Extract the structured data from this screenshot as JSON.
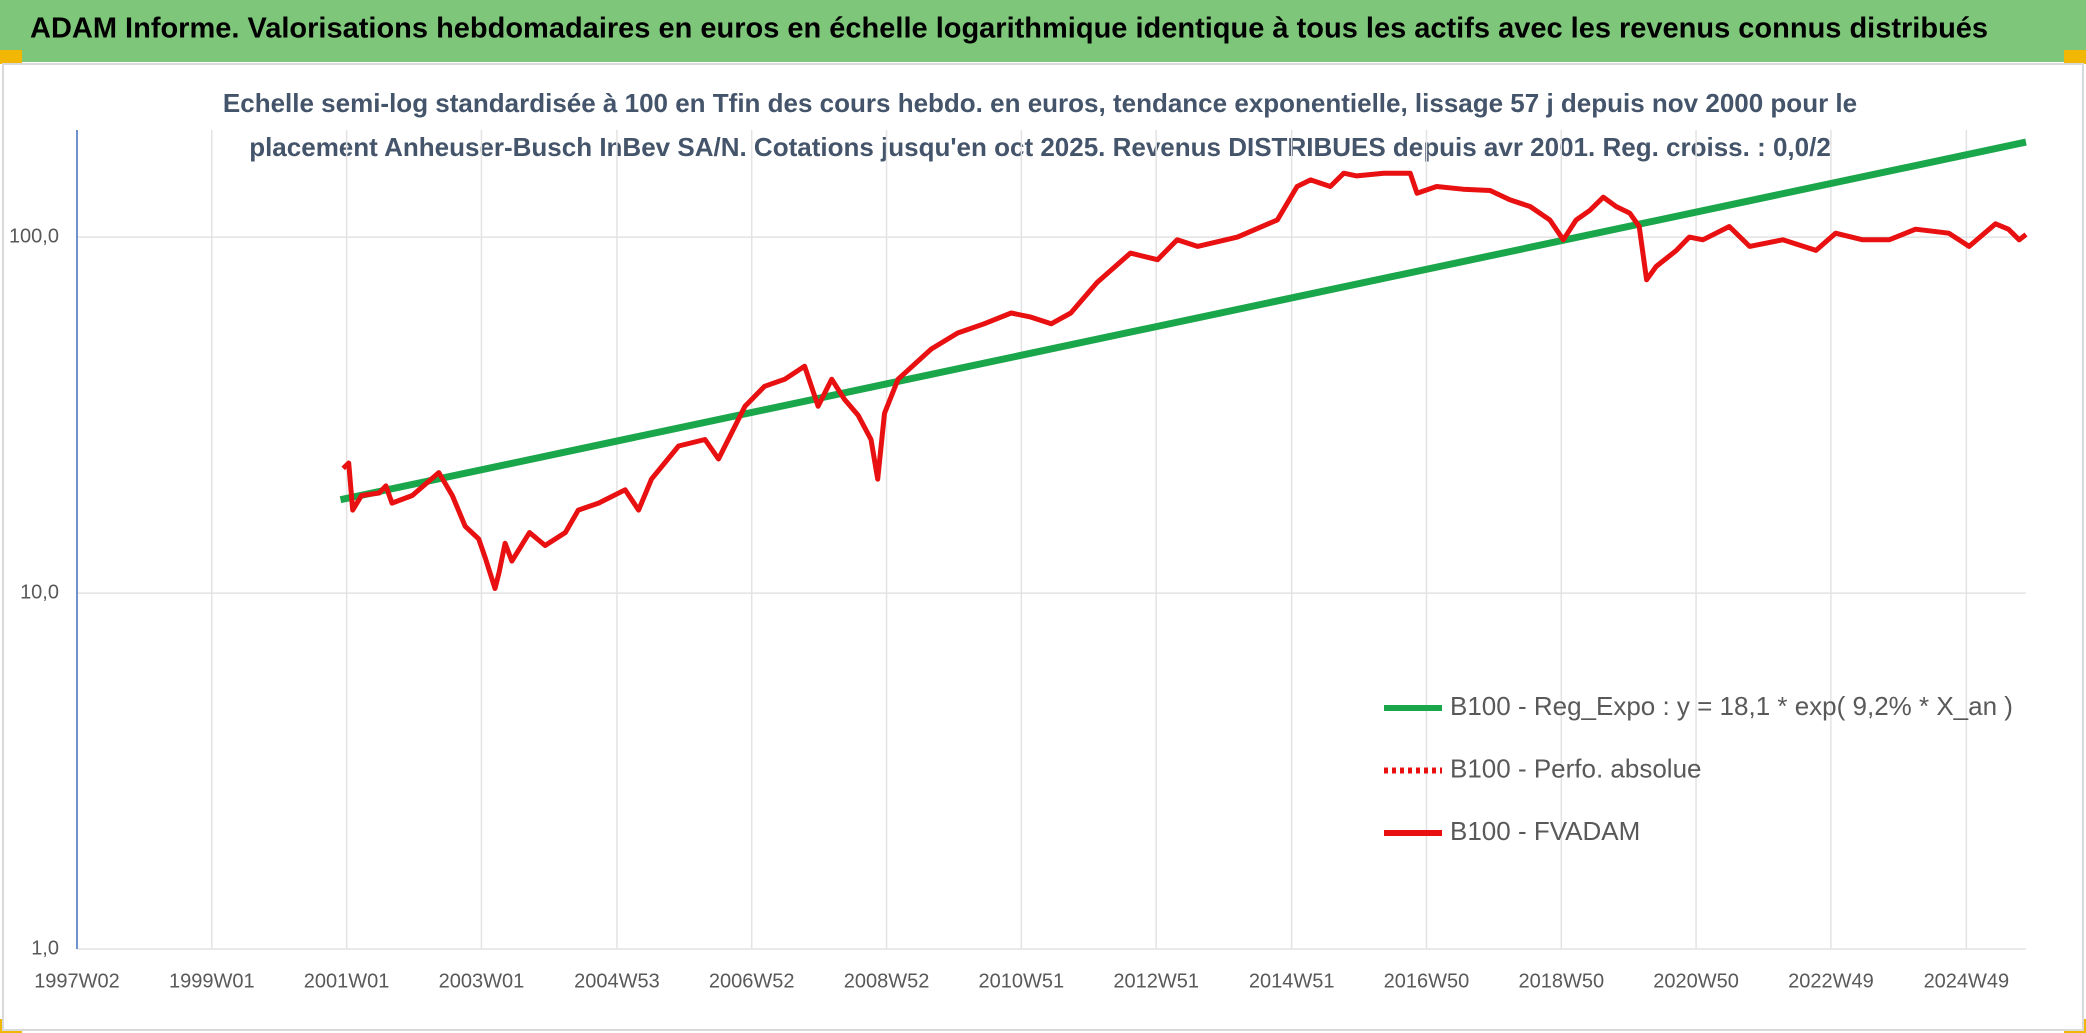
{
  "chart_data": {
    "type": "line",
    "title": "ADAM Informe. Valorisations hebdomadaires en euros en échelle logarithmique identique à tous les actifs avec les revenus connus distribués",
    "subtitle": [
      "Echelle semi-log standardisée à 100 en Tfin des cours hebdo. en euros, tendance exponentielle, lissage 57 j depuis nov 2000 pour le",
      "placement Anheuser-Busch InBev SA/N. Cotations jusqu'en oct 2025. Revenus DISTRIBUES depuis avr 2001. Reg. croiss. : 0,0/2"
    ],
    "log_scale_y": true,
    "grid": true,
    "legend": "right",
    "xlim": [
      1997.02,
      2025.79
    ],
    "xticks": [
      {
        "value": 1997.02,
        "label": "1997W02"
      },
      {
        "value": 1999.01,
        "label": "1999W01"
      },
      {
        "value": 2001.0,
        "label": "2001W01"
      },
      {
        "value": 2002.99,
        "label": "2003W01"
      },
      {
        "value": 2004.99,
        "label": "2004W53"
      },
      {
        "value": 2006.98,
        "label": "2006W52"
      },
      {
        "value": 2008.97,
        "label": "2008W52"
      },
      {
        "value": 2010.96,
        "label": "2010W51"
      },
      {
        "value": 2012.95,
        "label": "2012W51"
      },
      {
        "value": 2014.95,
        "label": "2014W51"
      },
      {
        "value": 2016.94,
        "label": "2016W50"
      },
      {
        "value": 2018.93,
        "label": "2018W50"
      },
      {
        "value": 2020.92,
        "label": "2020W50"
      },
      {
        "value": 2022.91,
        "label": "2022W49"
      },
      {
        "value": 2024.91,
        "label": "2024W49"
      }
    ],
    "ylim": [
      1,
      200
    ],
    "yticks": [
      {
        "value": 1,
        "label": "1,0"
      },
      {
        "value": 10,
        "label": "10,0"
      },
      {
        "value": 100,
        "label": "100,0"
      }
    ],
    "series": [
      {
        "name": "B100 - Reg_Expo : y = 18,1 * exp( 9,2% *  X_an )",
        "color": "#1aa64a",
        "style": "solid",
        "x": [
          2000.91,
          2025.79
        ],
        "values": [
          18.3,
          185
        ]
      },
      {
        "name": "B100 - Perfo. absolue",
        "color": "#e81010",
        "style": "dotted",
        "x": [],
        "values": []
      },
      {
        "name": "B100 - FVADAM",
        "color": "#e81010",
        "style": "solid",
        "x": [
          2000.95,
          2001.03,
          2001.09,
          2001.22,
          2001.48,
          2001.58,
          2001.67,
          2001.97,
          2002.36,
          2002.56,
          2002.75,
          2002.95,
          2003.05,
          2003.19,
          2003.25,
          2003.34,
          2003.44,
          2003.7,
          2003.93,
          2004.23,
          2004.42,
          2004.72,
          2005.11,
          2005.31,
          2005.5,
          2005.9,
          2006.29,
          2006.49,
          2006.88,
          2007.17,
          2007.47,
          2007.76,
          2007.96,
          2008.16,
          2008.35,
          2008.55,
          2008.74,
          2008.84,
          2008.94,
          2009.14,
          2009.63,
          2010.02,
          2010.41,
          2010.81,
          2011.1,
          2011.4,
          2011.69,
          2012.08,
          2012.57,
          2012.97,
          2013.26,
          2013.56,
          2014.15,
          2014.74,
          2015.03,
          2015.23,
          2015.52,
          2015.72,
          2015.91,
          2016.31,
          2016.7,
          2016.8,
          2017.09,
          2017.48,
          2017.88,
          2018.17,
          2018.47,
          2018.76,
          2018.96,
          2019.15,
          2019.35,
          2019.55,
          2019.74,
          2019.94,
          2020.08,
          2020.19,
          2020.33,
          2020.63,
          2020.82,
          2021.02,
          2021.41,
          2021.71,
          2022.2,
          2022.69,
          2022.98,
          2023.38,
          2023.77,
          2024.16,
          2024.65,
          2024.95,
          2025.34,
          2025.53,
          2025.69,
          2025.79
        ],
        "values": [
          22.4,
          23.2,
          17.1,
          18.8,
          19.1,
          20.0,
          17.9,
          18.8,
          21.8,
          18.8,
          15.4,
          14.2,
          12.5,
          10.3,
          11.4,
          13.8,
          12.3,
          14.8,
          13.6,
          14.8,
          17.1,
          17.9,
          19.5,
          17.1,
          20.9,
          25.9,
          27.0,
          23.8,
          33.5,
          38.1,
          39.9,
          43.4,
          33.5,
          39.9,
          35.0,
          31.6,
          27.0,
          20.9,
          32.0,
          39.9,
          48.5,
          53.8,
          57.1,
          61.2,
          59.6,
          57.1,
          61.2,
          74.6,
          90.2,
          86.4,
          98.3,
          94.2,
          100,
          111.8,
          138.8,
          144.8,
          138.8,
          151.2,
          148.6,
          151.2,
          151.2,
          132.9,
          138.8,
          136.4,
          135.2,
          127.3,
          121.9,
          111.8,
          98.3,
          111.8,
          118.8,
          129.5,
          121.9,
          116.8,
          107.1,
          75.9,
          82.7,
          91.8,
          100,
          98.3,
          107.1,
          94.2,
          98.3,
          91.8,
          102.6,
          98.3,
          98.3,
          105.3,
          102.6,
          94.2,
          109,
          105.3,
          98.3,
          101.7
        ]
      }
    ]
  }
}
